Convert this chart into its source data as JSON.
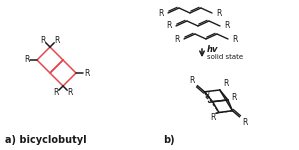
{
  "bg_color": "#ffffff",
  "red_color": "#e8474c",
  "black_color": "#1a1a1a",
  "label_a": "a) bicyclobutyl",
  "label_b": "b)",
  "arrow_label1": "hv",
  "arrow_label2": "solid state",
  "font_size_label": 7.0,
  "font_size_R": 5.5,
  "font_size_arrow": 6.0
}
